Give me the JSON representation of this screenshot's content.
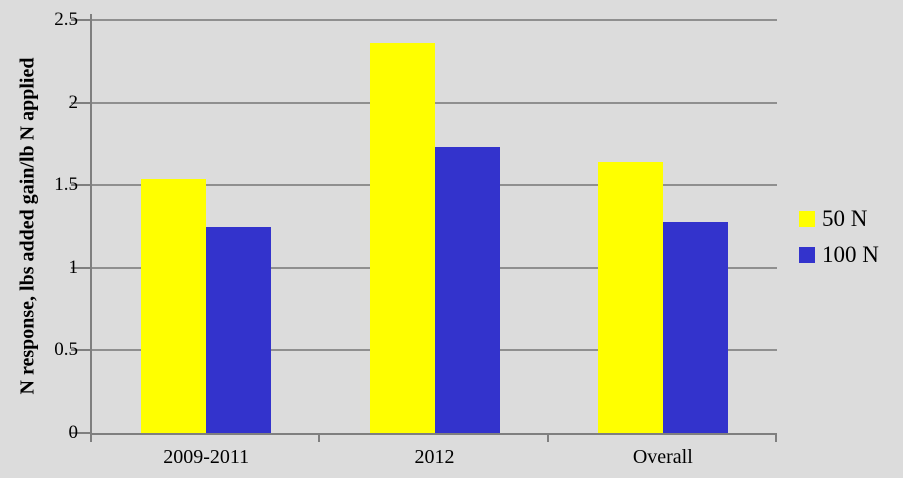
{
  "chart_data": {
    "type": "bar",
    "title": "",
    "categories": [
      "2009-2011",
      "2012",
      "Overall"
    ],
    "series": [
      {
        "name": "50 N",
        "color": "#ffff00",
        "values": [
          1.54,
          2.36,
          1.64
        ]
      },
      {
        "name": "100 N",
        "color": "#3333cc",
        "values": [
          1.25,
          1.73,
          1.28
        ]
      }
    ],
    "xlabel": "",
    "ylabel": "N response, lbs added gain/lb N applied",
    "ylim": [
      0,
      2.5
    ],
    "ytick_step": 0.5,
    "yticks": [
      "0",
      "0.5",
      "1",
      "1.5",
      "2",
      "2.5"
    ],
    "grid": true,
    "legend_position": "right"
  },
  "colors": {
    "background": "#dcdcdc",
    "gridline": "#8f8f8f",
    "axis": "#7f7f7f",
    "bar_yellow": "#ffff00",
    "bar_blue": "#3333cc",
    "text": "#000000"
  }
}
